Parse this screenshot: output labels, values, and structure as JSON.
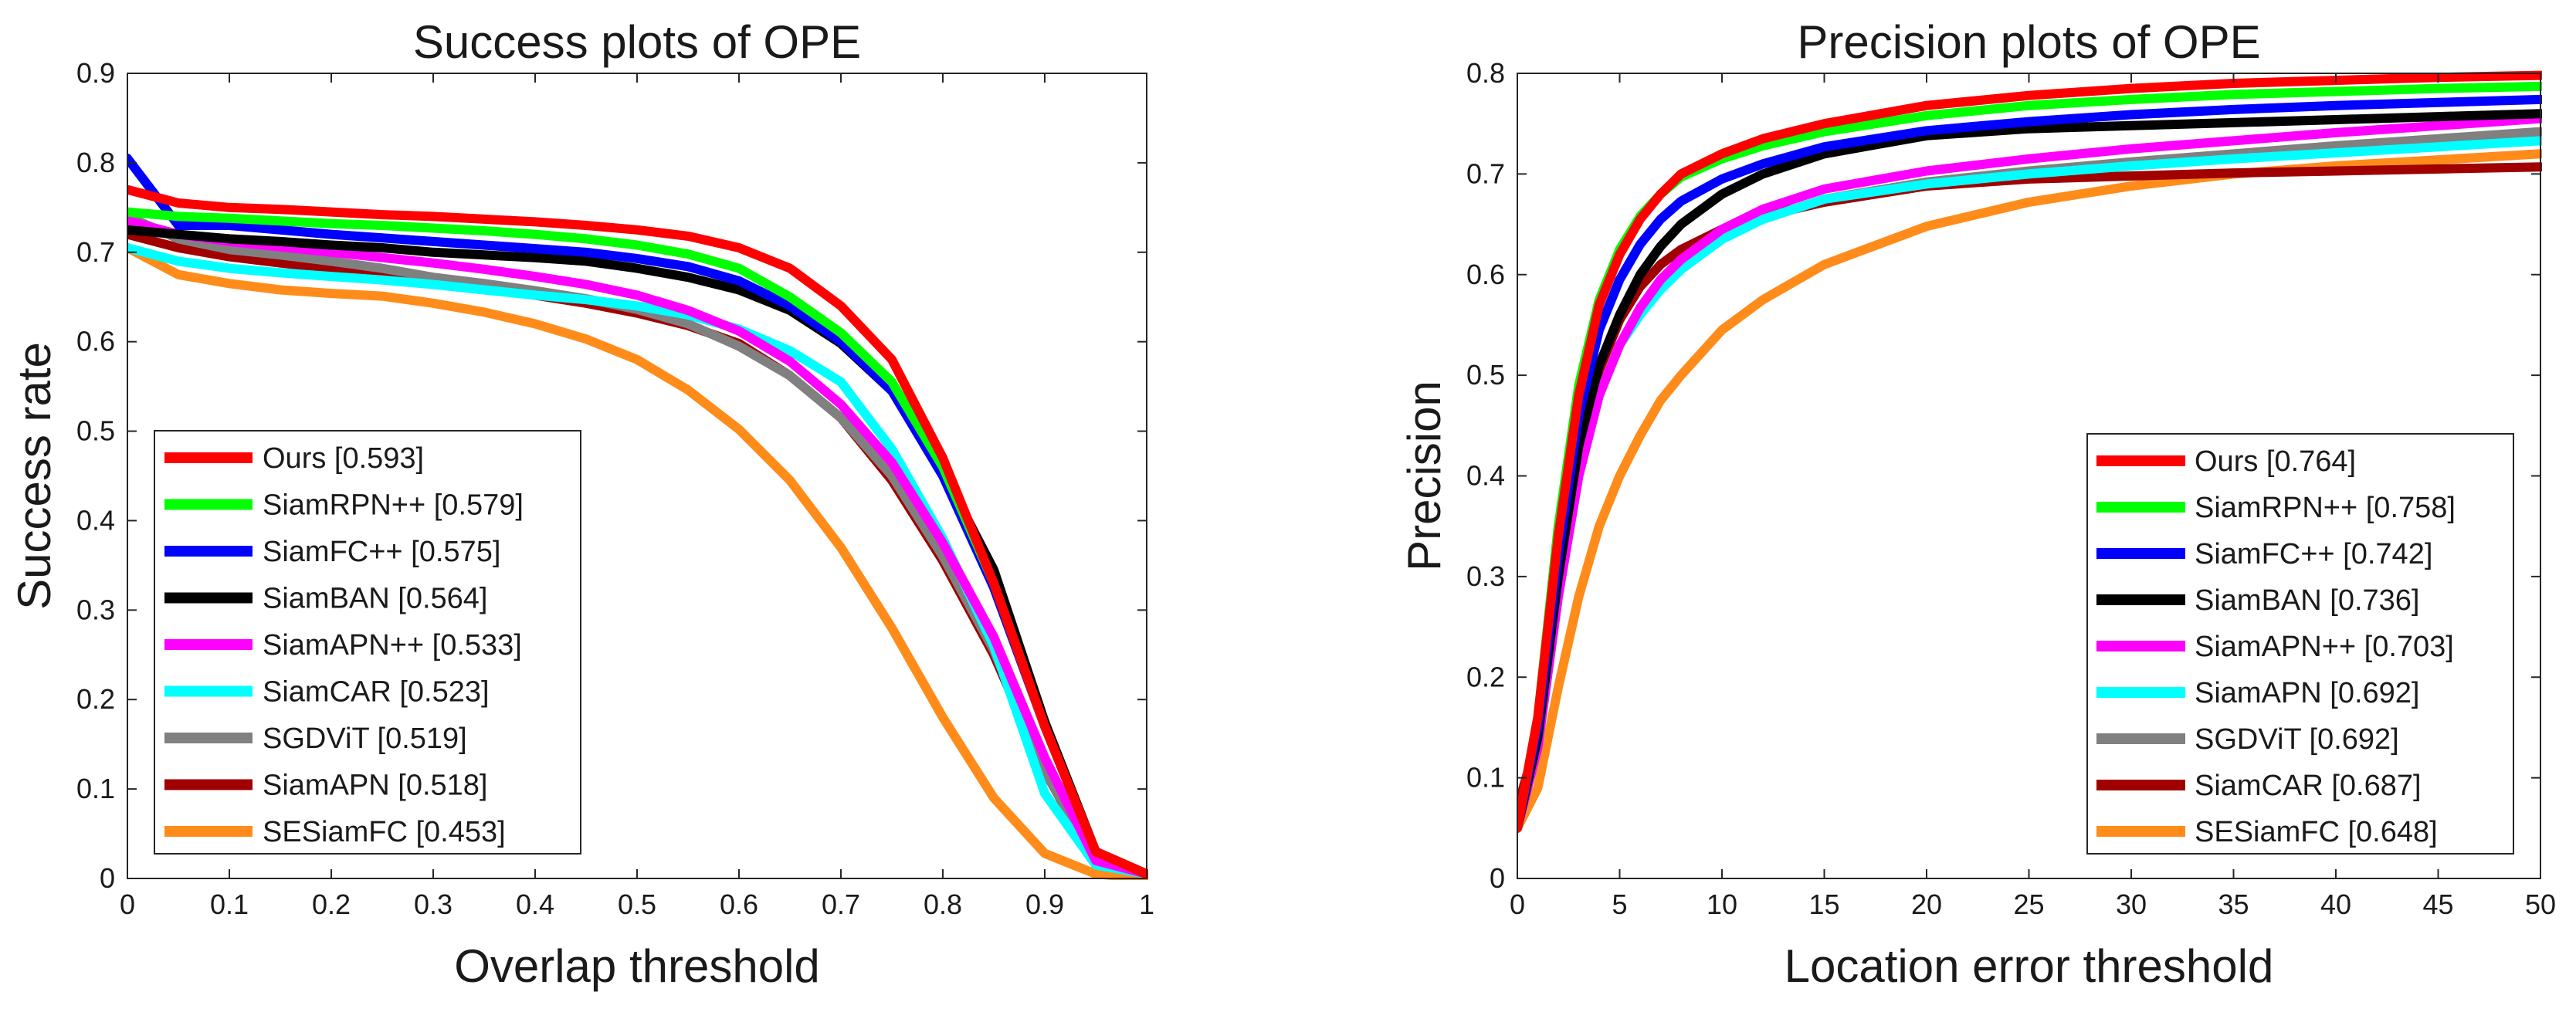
{
  "colors": {
    "red": "#ff0000",
    "green": "#00ff00",
    "blue": "#0000ff",
    "black": "#000000",
    "magenta": "#ff00ff",
    "cyan": "#00ffff",
    "gray": "#808080",
    "darkred": "#a00000",
    "orange": "#ff8c1a"
  },
  "chart_data": [
    {
      "type": "line",
      "title": "Success plots of OPE",
      "xlabel": "Overlap threshold",
      "ylabel": "Success rate",
      "xlim": [
        0,
        1
      ],
      "ylim": [
        0,
        0.9
      ],
      "xticks": [
        "0",
        "0.1",
        "0.2",
        "0.3",
        "0.4",
        "0.5",
        "0.6",
        "0.7",
        "0.8",
        "0.9",
        "1"
      ],
      "yticks": [
        "0",
        "0.1",
        "0.2",
        "0.3",
        "0.4",
        "0.5",
        "0.6",
        "0.7",
        "0.8",
        "0.9"
      ],
      "legend_position": "bottom-left",
      "x": [
        0,
        0.05,
        0.1,
        0.15,
        0.2,
        0.25,
        0.3,
        0.35,
        0.4,
        0.45,
        0.5,
        0.55,
        0.6,
        0.65,
        0.7,
        0.75,
        0.8,
        0.85,
        0.9,
        0.95,
        1.0
      ],
      "series": [
        {
          "name": "Ours [0.593]",
          "color": "red",
          "values": [
            0.77,
            0.755,
            0.75,
            0.748,
            0.745,
            0.742,
            0.74,
            0.737,
            0.734,
            0.73,
            0.725,
            0.718,
            0.705,
            0.682,
            0.64,
            0.58,
            0.47,
            0.33,
            0.17,
            0.03,
            0.005
          ]
        },
        {
          "name": "SiamRPN++ [0.579]",
          "color": "green",
          "values": [
            0.745,
            0.74,
            0.738,
            0.735,
            0.732,
            0.73,
            0.727,
            0.724,
            0.72,
            0.715,
            0.708,
            0.698,
            0.682,
            0.65,
            0.61,
            0.555,
            0.46,
            0.33,
            0.17,
            0.03,
            0.005
          ]
        },
        {
          "name": "SiamFC++ [0.575]",
          "color": "blue",
          "values": [
            0.805,
            0.73,
            0.73,
            0.725,
            0.72,
            0.716,
            0.712,
            0.708,
            0.704,
            0.7,
            0.693,
            0.684,
            0.668,
            0.64,
            0.6,
            0.545,
            0.45,
            0.325,
            0.17,
            0.03,
            0.005
          ]
        },
        {
          "name": "SiamBAN [0.564]",
          "color": "black",
          "values": [
            0.725,
            0.72,
            0.715,
            0.712,
            0.708,
            0.705,
            0.7,
            0.697,
            0.694,
            0.69,
            0.682,
            0.672,
            0.658,
            0.635,
            0.598,
            0.545,
            0.455,
            0.345,
            0.175,
            0.03,
            0.005
          ]
        },
        {
          "name": "SiamAPN++ [0.533]",
          "color": "magenta",
          "values": [
            0.735,
            0.72,
            0.712,
            0.706,
            0.7,
            0.694,
            0.688,
            0.681,
            0.673,
            0.664,
            0.652,
            0.635,
            0.612,
            0.578,
            0.53,
            0.465,
            0.375,
            0.27,
            0.135,
            0.02,
            0.005
          ]
        },
        {
          "name": "SiamCAR [0.523]",
          "color": "cyan",
          "values": [
            0.705,
            0.69,
            0.682,
            0.677,
            0.673,
            0.669,
            0.664,
            0.658,
            0.652,
            0.647,
            0.64,
            0.63,
            0.614,
            0.59,
            0.555,
            0.48,
            0.38,
            0.26,
            0.095,
            0.015,
            0.005
          ]
        },
        {
          "name": "SGDViT [0.519]",
          "color": "gray",
          "values": [
            0.74,
            0.715,
            0.703,
            0.697,
            0.69,
            0.682,
            0.672,
            0.665,
            0.657,
            0.648,
            0.636,
            0.62,
            0.595,
            0.562,
            0.515,
            0.45,
            0.36,
            0.255,
            0.12,
            0.02,
            0.005
          ]
        },
        {
          "name": "SiamAPN [0.518]",
          "color": "darkred",
          "values": [
            0.72,
            0.705,
            0.695,
            0.688,
            0.682,
            0.676,
            0.668,
            0.66,
            0.652,
            0.643,
            0.632,
            0.618,
            0.598,
            0.562,
            0.515,
            0.445,
            0.355,
            0.25,
            0.12,
            0.018,
            0.005
          ]
        },
        {
          "name": "SESiamFC [0.453]",
          "color": "orange",
          "values": [
            0.705,
            0.675,
            0.665,
            0.658,
            0.654,
            0.651,
            0.643,
            0.633,
            0.62,
            0.603,
            0.58,
            0.546,
            0.502,
            0.445,
            0.37,
            0.28,
            0.18,
            0.09,
            0.028,
            0.005,
            0.0
          ]
        }
      ]
    },
    {
      "type": "line",
      "title": "Precision plots of OPE",
      "xlabel": "Location error threshold",
      "ylabel": "Precision",
      "xlim": [
        0,
        50
      ],
      "ylim": [
        0,
        0.8
      ],
      "xticks": [
        "0",
        "5",
        "10",
        "15",
        "20",
        "25",
        "30",
        "35",
        "40",
        "45",
        "50"
      ],
      "yticks": [
        "0",
        "0.1",
        "0.2",
        "0.3",
        "0.4",
        "0.5",
        "0.6",
        "0.7",
        "0.8"
      ],
      "legend_position": "bottom-right",
      "x": [
        0,
        1,
        2,
        3,
        4,
        5,
        6,
        7,
        8,
        10,
        12,
        15,
        20,
        25,
        30,
        35,
        40,
        45,
        50
      ],
      "series": [
        {
          "name": "Ours [0.764]",
          "color": "red",
          "values": [
            0.05,
            0.16,
            0.34,
            0.48,
            0.57,
            0.62,
            0.655,
            0.68,
            0.7,
            0.72,
            0.735,
            0.75,
            0.768,
            0.778,
            0.785,
            0.79,
            0.793,
            0.796,
            0.798
          ]
        },
        {
          "name": "SiamRPN++ [0.758]",
          "color": "green",
          "values": [
            0.05,
            0.16,
            0.35,
            0.49,
            0.575,
            0.625,
            0.658,
            0.68,
            0.697,
            0.715,
            0.728,
            0.742,
            0.758,
            0.768,
            0.774,
            0.779,
            0.782,
            0.785,
            0.787
          ]
        },
        {
          "name": "SiamFC++ [0.742]",
          "color": "blue",
          "values": [
            0.05,
            0.15,
            0.32,
            0.46,
            0.545,
            0.595,
            0.63,
            0.655,
            0.673,
            0.695,
            0.71,
            0.727,
            0.743,
            0.752,
            0.759,
            0.764,
            0.768,
            0.771,
            0.774
          ]
        },
        {
          "name": "SiamBAN [0.736]",
          "color": "black",
          "values": [
            0.05,
            0.14,
            0.3,
            0.43,
            0.51,
            0.56,
            0.6,
            0.628,
            0.65,
            0.68,
            0.7,
            0.72,
            0.738,
            0.745,
            0.748,
            0.751,
            0.754,
            0.757,
            0.76
          ]
        },
        {
          "name": "SiamAPN++ [0.703]",
          "color": "magenta",
          "values": [
            0.05,
            0.13,
            0.28,
            0.4,
            0.48,
            0.53,
            0.567,
            0.595,
            0.615,
            0.645,
            0.665,
            0.685,
            0.703,
            0.715,
            0.725,
            0.733,
            0.741,
            0.748,
            0.755
          ]
        },
        {
          "name": "SiamAPN [0.692]",
          "color": "cyan",
          "values": [
            0.05,
            0.13,
            0.28,
            0.4,
            0.48,
            0.53,
            0.56,
            0.585,
            0.605,
            0.635,
            0.655,
            0.675,
            0.69,
            0.7,
            0.708,
            0.715,
            0.721,
            0.727,
            0.733
          ]
        },
        {
          "name": "SGDViT [0.692]",
          "color": "gray",
          "values": [
            0.05,
            0.13,
            0.28,
            0.4,
            0.48,
            0.53,
            0.565,
            0.59,
            0.61,
            0.638,
            0.655,
            0.675,
            0.692,
            0.703,
            0.712,
            0.72,
            0.728,
            0.735,
            0.742
          ]
        },
        {
          "name": "SiamCAR [0.687]",
          "color": "darkred",
          "values": [
            0.07,
            0.14,
            0.3,
            0.43,
            0.505,
            0.555,
            0.588,
            0.61,
            0.625,
            0.645,
            0.658,
            0.672,
            0.688,
            0.695,
            0.698,
            0.701,
            0.703,
            0.705,
            0.707
          ]
        },
        {
          "name": "SESiamFC [0.648]",
          "color": "orange",
          "values": [
            0.05,
            0.09,
            0.19,
            0.28,
            0.35,
            0.4,
            0.44,
            0.475,
            0.5,
            0.545,
            0.575,
            0.61,
            0.648,
            0.672,
            0.688,
            0.7,
            0.708,
            0.714,
            0.72
          ]
        }
      ]
    }
  ]
}
